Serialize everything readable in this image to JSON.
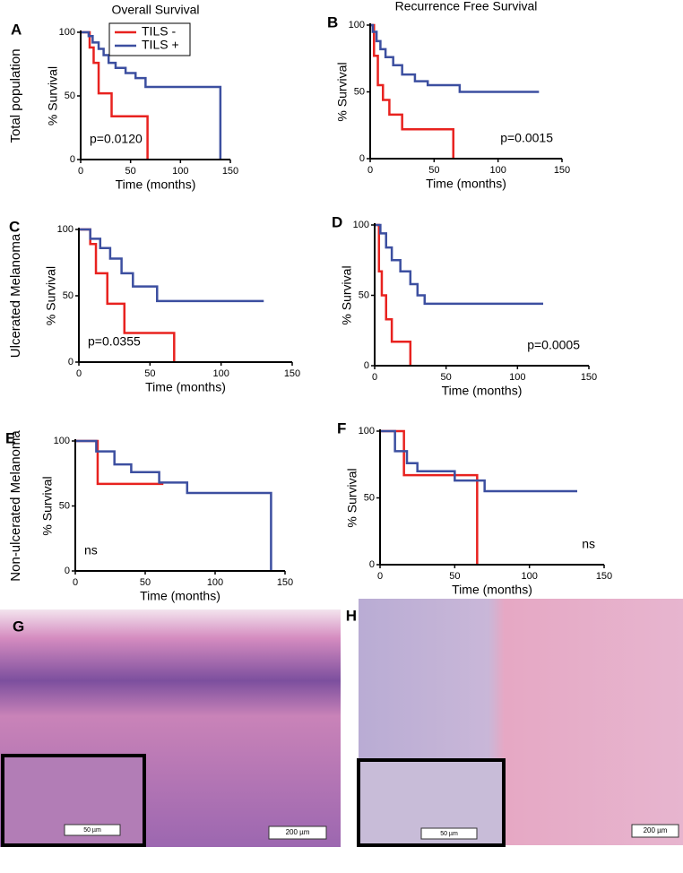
{
  "chart_data": [
    {
      "type": "line",
      "panel": "A",
      "title": "Overall Survival",
      "row_label": "Total population",
      "ylabel": "% Survival",
      "xlabel": "Time (months)",
      "annotation": "p=0.0120",
      "xlim": [
        0,
        150
      ],
      "ylim": [
        0,
        100
      ],
      "xticks": [
        0,
        50,
        100,
        150
      ],
      "yticks": [
        0,
        50,
        100
      ],
      "legend": "top-right",
      "series": [
        {
          "name": "TILS -",
          "color": "#e8221f",
          "x": [
            0,
            9,
            13,
            18,
            31,
            67
          ],
          "values": [
            100,
            88,
            76,
            52,
            34,
            0
          ]
        },
        {
          "name": "TILS +",
          "color": "#3c4fa0",
          "x": [
            0,
            8,
            12,
            18,
            23,
            28,
            35,
            45,
            55,
            65,
            140
          ],
          "values": [
            100,
            97,
            92,
            87,
            82,
            76,
            72,
            68,
            64,
            57,
            0
          ]
        }
      ]
    },
    {
      "type": "line",
      "panel": "B",
      "title": "Recurrence Free Survival",
      "ylabel": "% Survival",
      "xlabel": "Time (months)",
      "annotation": "p=0.0015",
      "xlim": [
        0,
        150
      ],
      "ylim": [
        0,
        100
      ],
      "xticks": [
        0,
        50,
        100,
        150
      ],
      "yticks": [
        0,
        50,
        100
      ],
      "series": [
        {
          "color": "#e8221f",
          "x": [
            0,
            3,
            6,
            10,
            15,
            25,
            65
          ],
          "values": [
            100,
            77,
            55,
            44,
            33,
            22,
            0
          ]
        },
        {
          "color": "#3c4fa0",
          "x": [
            0,
            2,
            5,
            8,
            12,
            18,
            25,
            35,
            45,
            70,
            132
          ],
          "values": [
            100,
            95,
            88,
            82,
            76,
            70,
            63,
            58,
            55,
            50,
            50
          ]
        }
      ]
    },
    {
      "type": "line",
      "panel": "C",
      "row_label": "Ulcerated Melanoma",
      "ylabel": "% Survival",
      "xlabel": "Time (months)",
      "annotation": "p=0.0355",
      "xlim": [
        0,
        150
      ],
      "ylim": [
        0,
        100
      ],
      "xticks": [
        0,
        50,
        100,
        150
      ],
      "yticks": [
        0,
        50,
        100
      ],
      "series": [
        {
          "color": "#e8221f",
          "x": [
            0,
            8,
            12,
            20,
            32,
            67
          ],
          "values": [
            100,
            89,
            67,
            44,
            22,
            0
          ]
        },
        {
          "color": "#3c4fa0",
          "x": [
            0,
            8,
            15,
            22,
            30,
            38,
            55,
            130
          ],
          "values": [
            100,
            93,
            86,
            78,
            67,
            57,
            46,
            46
          ]
        }
      ]
    },
    {
      "type": "line",
      "panel": "D",
      "ylabel": "% Survival",
      "xlabel": "Time (months)",
      "annotation": "p=0.0005",
      "xlim": [
        0,
        150
      ],
      "ylim": [
        0,
        100
      ],
      "xticks": [
        0,
        50,
        100,
        150
      ],
      "yticks": [
        0,
        50,
        100
      ],
      "series": [
        {
          "color": "#e8221f",
          "x": [
            0,
            3,
            5,
            8,
            12,
            25
          ],
          "values": [
            100,
            67,
            50,
            33,
            17,
            0
          ]
        },
        {
          "color": "#3c4fa0",
          "x": [
            0,
            4,
            8,
            12,
            18,
            25,
            30,
            35,
            118
          ],
          "values": [
            100,
            94,
            84,
            75,
            67,
            58,
            50,
            44,
            44
          ]
        }
      ]
    },
    {
      "type": "line",
      "panel": "E",
      "row_label": "Non-ulcerated Melanoma",
      "ylabel": "% Survival",
      "xlabel": "Time (months)",
      "annotation": "ns",
      "xlim": [
        0,
        150
      ],
      "ylim": [
        0,
        100
      ],
      "xticks": [
        0,
        50,
        100,
        150
      ],
      "yticks": [
        0,
        50,
        100
      ],
      "series": [
        {
          "color": "#e8221f",
          "x": [
            0,
            16,
            63
          ],
          "values": [
            100,
            67,
            67
          ]
        },
        {
          "color": "#3c4fa0",
          "x": [
            0,
            15,
            28,
            40,
            60,
            80,
            140
          ],
          "values": [
            100,
            92,
            82,
            76,
            68,
            60,
            0
          ]
        }
      ]
    },
    {
      "type": "line",
      "panel": "F",
      "ylabel": "% Survival",
      "xlabel": "Time (months)",
      "annotation": "ns",
      "xlim": [
        0,
        150
      ],
      "ylim": [
        0,
        100
      ],
      "xticks": [
        0,
        50,
        100,
        150
      ],
      "yticks": [
        0,
        50,
        100
      ],
      "series": [
        {
          "color": "#e8221f",
          "x": [
            0,
            16,
            65
          ],
          "values": [
            100,
            67,
            0
          ]
        },
        {
          "color": "#3c4fa0",
          "x": [
            0,
            10,
            18,
            25,
            50,
            70,
            132
          ],
          "values": [
            100,
            85,
            76,
            70,
            63,
            55,
            55
          ]
        }
      ]
    }
  ],
  "images": [
    {
      "panel": "G",
      "scale": "200 µm",
      "inset_scale": "50 µm"
    },
    {
      "panel": "H",
      "scale": "200 µm",
      "inset_scale": "50 µm"
    }
  ]
}
